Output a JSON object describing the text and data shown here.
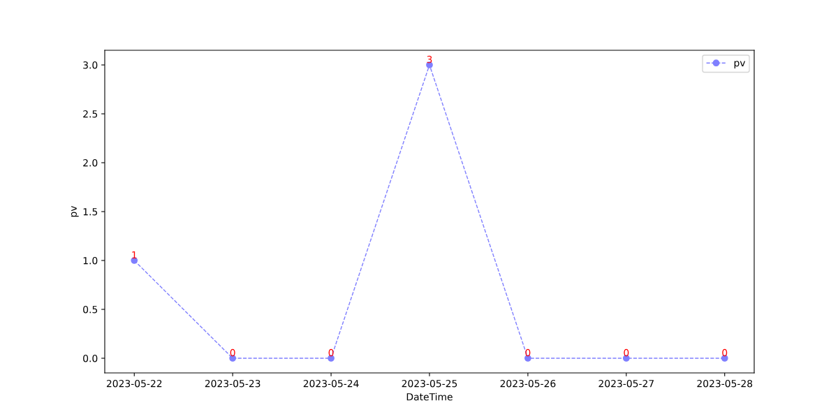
{
  "chart_data": {
    "type": "line",
    "xlabel": "DateTime",
    "ylabel": "pv",
    "categories": [
      "2023-05-22",
      "2023-05-23",
      "2023-05-24",
      "2023-05-25",
      "2023-05-26",
      "2023-05-27",
      "2023-05-28"
    ],
    "series": [
      {
        "name": "pv",
        "color": "#7f7fff",
        "values": [
          1,
          0,
          0,
          3,
          0,
          0,
          0
        ]
      }
    ],
    "ylim": [
      -0.15,
      3.15
    ],
    "yticks": [
      {
        "value": 0,
        "label": "0.0"
      },
      {
        "value": 0.5,
        "label": "0.5"
      },
      {
        "value": 1,
        "label": "1.0"
      },
      {
        "value": 1.5,
        "label": "1.5"
      },
      {
        "value": 2,
        "label": "2.0"
      },
      {
        "value": 2.5,
        "label": "2.5"
      },
      {
        "value": 3,
        "label": "3.0"
      }
    ],
    "data_labels": true,
    "legend": "top right",
    "marker": "circle",
    "line_style": "dashed",
    "grid": false
  }
}
